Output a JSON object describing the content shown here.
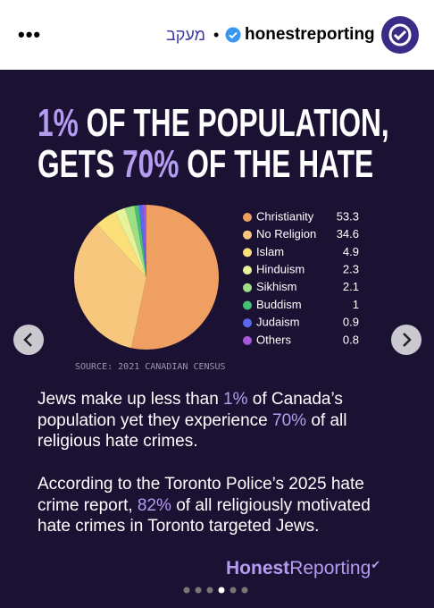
{
  "header": {
    "follow": "מעקב",
    "username": "honestreporting"
  },
  "post": {
    "title_lines": [
      [
        {
          "text": "1%",
          "highlight": true
        },
        {
          "text": " OF THE POPULATION,",
          "highlight": false
        }
      ],
      [
        {
          "text": "GETS ",
          "highlight": false
        },
        {
          "text": "70%",
          "highlight": true
        },
        {
          "text": " OF THE HATE",
          "highlight": false
        }
      ]
    ],
    "paragraphs": [
      [
        [
          {
            "text": "Jews make up less than ",
            "highlight": false
          },
          {
            "text": "1%",
            "highlight": true
          },
          {
            "text": " of Canada’s",
            "highlight": false
          }
        ],
        [
          {
            "text": "population yet they experience ",
            "highlight": false
          },
          {
            "text": "70%",
            "highlight": true
          },
          {
            "text": " of all",
            "highlight": false
          }
        ],
        [
          {
            "text": "religious hate crimes.",
            "highlight": false
          }
        ]
      ],
      [
        [
          {
            "text": "According to the Toronto Police’s 2025 hate",
            "highlight": false
          }
        ],
        [
          {
            "text": "crime report, ",
            "highlight": false
          },
          {
            "text": "82%",
            "highlight": true
          },
          {
            "text": " of all religiously motivated",
            "highlight": false
          }
        ],
        [
          {
            "text": "hate crimes in Toronto targeted Jews.",
            "highlight": false
          }
        ]
      ]
    ],
    "logo": [
      "Honest",
      "Reporting"
    ]
  },
  "chart_data": {
    "type": "pie",
    "categories": [
      "Christianity",
      "No Religion",
      "Islam",
      "Hinduism",
      "Sikhism",
      "Buddism",
      "Judaism",
      "Others"
    ],
    "values": [
      53.3,
      34.6,
      4.9,
      2.3,
      2.1,
      1,
      0.9,
      0.8
    ],
    "colors": [
      "#ef9f62",
      "#f6c77c",
      "#fbe07a",
      "#e6f39a",
      "#9fdf86",
      "#45c073",
      "#5a6af0",
      "#a45ad8"
    ],
    "source": "SOURCE: 2021 CANADIAN CENSUS"
  }
}
